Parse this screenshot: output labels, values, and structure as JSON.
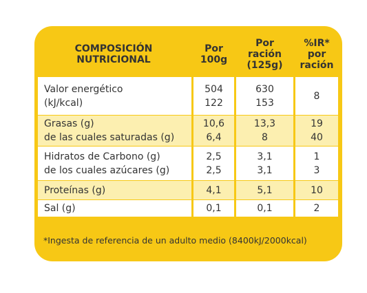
{
  "header": {
    "columns": [
      [
        "COMPOSICIÓN",
        "NUTRICIONAL"
      ],
      [
        "Por",
        "100g"
      ],
      [
        "Por",
        "ración",
        "(125g)"
      ],
      [
        "%IR*",
        "por",
        "ración"
      ]
    ]
  },
  "table": {
    "rows": [
      [
        [
          "Valor energético",
          "(kJ/kcal)"
        ],
        [
          "504",
          "122"
        ],
        [
          "630",
          "153"
        ],
        [
          "8"
        ]
      ],
      [
        [
          "Grasas (g)",
          "de las cuales saturadas (g)"
        ],
        [
          "10,6",
          "6,4"
        ],
        [
          "13,3",
          "8"
        ],
        [
          "19",
          "40"
        ]
      ],
      [
        [
          "Hidratos de Carbono (g)",
          "de los cuales azúcares (g)"
        ],
        [
          "2,5",
          "2,5"
        ],
        [
          "3,1",
          "3,1"
        ],
        [
          "1",
          "3"
        ]
      ],
      [
        [
          "Proteínas (g)"
        ],
        [
          "4,1"
        ],
        [
          "5,1"
        ],
        [
          "10"
        ]
      ],
      [
        [
          "Sal (g)"
        ],
        [
          "0,1"
        ],
        [
          "0,1"
        ],
        [
          "2"
        ]
      ]
    ]
  },
  "footnote": "*Ingesta de referencia de un adulto medio (8400kJ/2000kcal)"
}
